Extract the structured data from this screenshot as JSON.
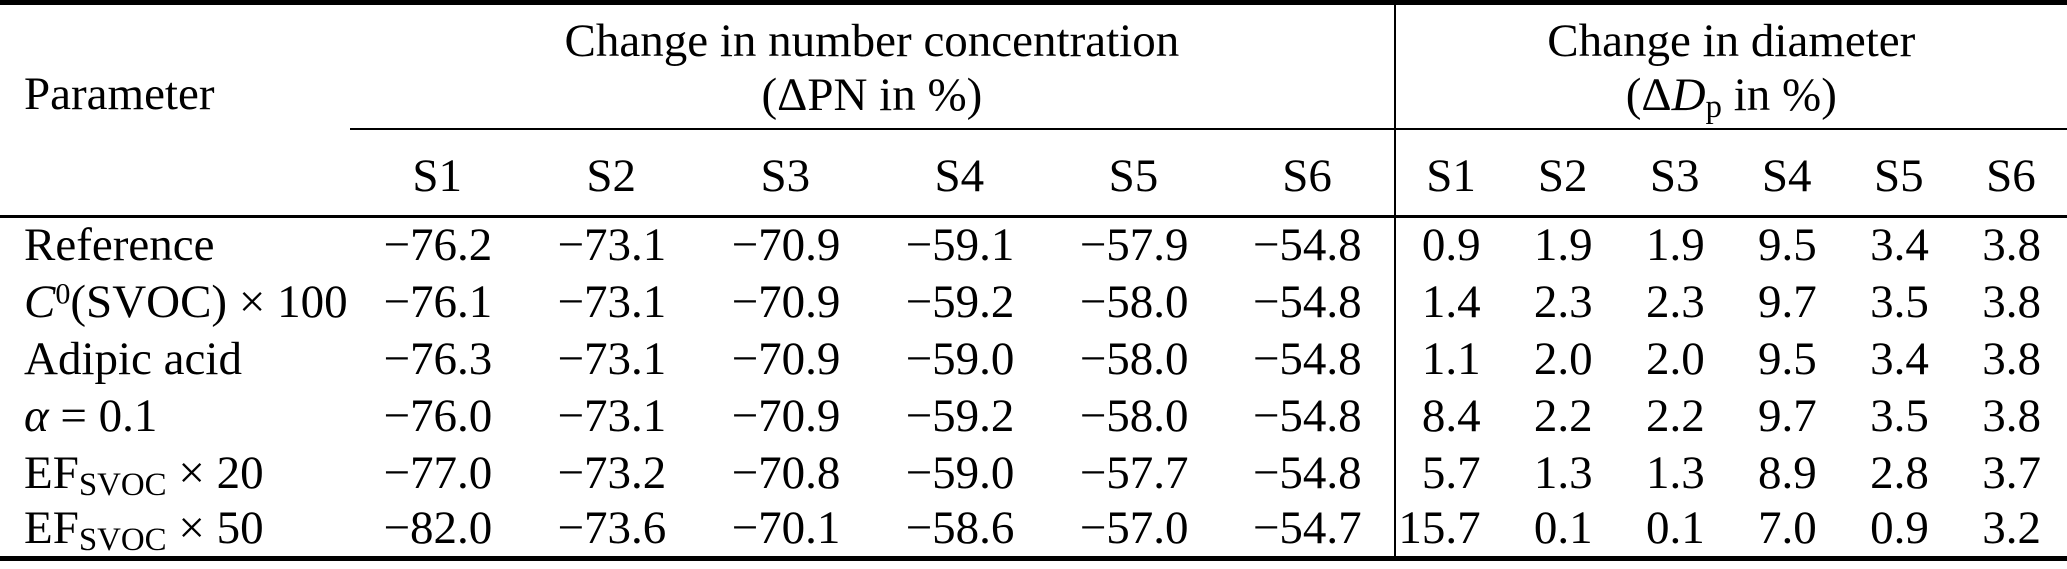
{
  "page": {
    "background": "#ffffff",
    "text_color": "#000000",
    "rule_color": "#000000"
  },
  "table": {
    "param_header": "Parameter",
    "groups": [
      {
        "id": "pn",
        "title": "Change in number concentration",
        "subtitle_parts": [
          {
            "t": "(ΔPN in %)"
          }
        ],
        "subcols": [
          "S1",
          "S2",
          "S3",
          "S4",
          "S5",
          "S6"
        ]
      },
      {
        "id": "dp",
        "title": "Change in diameter",
        "subtitle_parts": [
          {
            "t": "(Δ"
          },
          {
            "t": "D",
            "s": "i"
          },
          {
            "t": "p",
            "s": "sub"
          },
          {
            "t": " in %)"
          }
        ],
        "subcols": [
          "S1",
          "S2",
          "S3",
          "S4",
          "S5",
          "S6"
        ]
      }
    ],
    "rows": [
      {
        "label_parts": [
          {
            "t": "Reference"
          }
        ],
        "pn": [
          "−76.2",
          "−73.1",
          "−70.9",
          "−59.1",
          "−57.9",
          "−54.8"
        ],
        "dp": [
          "0.9",
          "1.9",
          "1.9",
          "9.5",
          "3.4",
          "3.8"
        ]
      },
      {
        "label_parts": [
          {
            "t": "C",
            "s": "i"
          },
          {
            "t": "0",
            "s": "sup"
          },
          {
            "t": "(SVOC) × 100"
          }
        ],
        "pn": [
          "−76.1",
          "−73.1",
          "−70.9",
          "−59.2",
          "−58.0",
          "−54.8"
        ],
        "dp": [
          "1.4",
          "2.3",
          "2.3",
          "9.7",
          "3.5",
          "3.8"
        ]
      },
      {
        "label_parts": [
          {
            "t": "Adipic acid"
          }
        ],
        "pn": [
          "−76.3",
          "−73.1",
          "−70.9",
          "−59.0",
          "−58.0",
          "−54.8"
        ],
        "dp": [
          "1.1",
          "2.0",
          "2.0",
          "9.5",
          "3.4",
          "3.8"
        ]
      },
      {
        "label_parts": [
          {
            "t": "α",
            "s": "i"
          },
          {
            "t": " = 0.1"
          }
        ],
        "pn": [
          "−76.0",
          "−73.1",
          "−70.9",
          "−59.2",
          "−58.0",
          "−54.8"
        ],
        "dp": [
          "8.4",
          "2.2",
          "2.2",
          "9.7",
          "3.5",
          "3.8"
        ]
      },
      {
        "label_parts": [
          {
            "t": "EF"
          },
          {
            "t": "SVOC",
            "s": "sub"
          },
          {
            "t": " × 20"
          }
        ],
        "pn": [
          "−77.0",
          "−73.2",
          "−70.8",
          "−59.0",
          "−57.7",
          "−54.8"
        ],
        "dp": [
          "5.7",
          "1.3",
          "1.3",
          "8.9",
          "2.8",
          "3.7"
        ]
      },
      {
        "label_parts": [
          {
            "t": "EF"
          },
          {
            "t": "SVOC",
            "s": "sub"
          },
          {
            "t": " × 50"
          }
        ],
        "pn": [
          "−82.0",
          "−73.6",
          "−70.1",
          "−58.6",
          "−57.0",
          "−54.7"
        ],
        "dp": [
          "15.7",
          "0.1",
          "0.1",
          "7.0",
          "0.9",
          "3.2"
        ]
      }
    ]
  }
}
